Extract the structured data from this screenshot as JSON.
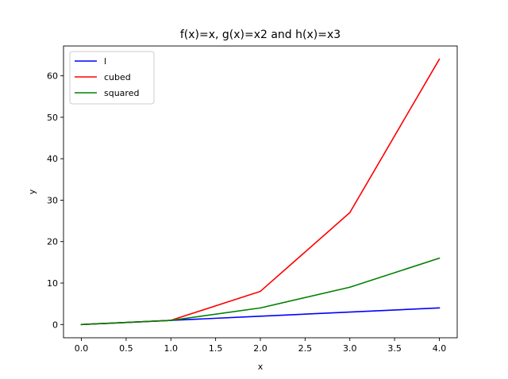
{
  "chart_data": {
    "type": "line",
    "title": "f(x)=x, g(x)=x2 and h(x)=x3",
    "xlabel": "x",
    "ylabel": "y",
    "x": [
      0,
      1,
      2,
      3,
      4
    ],
    "xlim": [
      -0.2,
      4.2
    ],
    "ylim": [
      -3.2,
      67.2
    ],
    "xticks": [
      0.0,
      0.5,
      1.0,
      1.5,
      2.0,
      2.5,
      3.0,
      3.5,
      4.0
    ],
    "xtick_labels": [
      "0.0",
      "0.5",
      "1.0",
      "1.5",
      "2.0",
      "2.5",
      "3.0",
      "3.5",
      "4.0"
    ],
    "yticks": [
      0,
      10,
      20,
      30,
      40,
      50,
      60
    ],
    "ytick_labels": [
      "0",
      "10",
      "20",
      "30",
      "40",
      "50",
      "60"
    ],
    "grid": false,
    "legend_position": "top-left",
    "series": [
      {
        "name": "l",
        "values": [
          0,
          1,
          2,
          3,
          4
        ],
        "color": "#0000ff"
      },
      {
        "name": "cubed",
        "values": [
          0,
          1,
          8,
          27,
          64
        ],
        "color": "#ff0000"
      },
      {
        "name": "squared",
        "values": [
          0,
          1,
          4,
          9,
          16
        ],
        "color": "#008000"
      }
    ]
  }
}
